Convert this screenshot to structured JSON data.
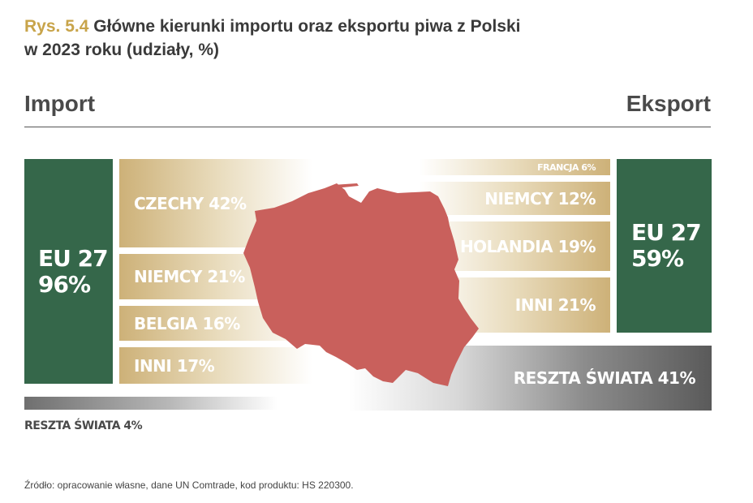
{
  "title": {
    "prefix": "Rys. 5.4",
    "line1": "Główne kierunki importu oraz eksportu piwa z Polski",
    "line2": "w 2023 roku (udziały, %)"
  },
  "headers": {
    "import": "Import",
    "export": "Eksport"
  },
  "import": {
    "eu": {
      "line1": "EU 27",
      "line2": "96%"
    },
    "labels": [
      "CZECHY 42%",
      "NIEMCY 21%",
      "BELGIA 16%",
      "INNI 17%"
    ],
    "rest_label": "RESZTA ŚWIATA 4%"
  },
  "export": {
    "eu": {
      "line1": "EU 27",
      "line2": "59%"
    },
    "labels": [
      "FRANCJA 6%",
      "NIEMCY 12%",
      "HOLANDIA 19%",
      "INNI 21%"
    ],
    "rest_label": "RESZTA ŚWIATA 41%"
  },
  "source": "Źródło: opracowanie własne, dane UN Comtrade, kod produktu: HS 220300.",
  "colors": {
    "eu_box": "#35674a",
    "band_gold": "#cdb178",
    "map": "#c9605c",
    "prefix": "#c8a44a",
    "rest_gray": "#5a5a5a"
  },
  "chart_data": {
    "type": "bar",
    "series": [
      {
        "name": "Import",
        "categories": [
          "CZECHY",
          "NIEMCY",
          "BELGIA",
          "INNI",
          "RESZTA ŚWIATA"
        ],
        "values": [
          42,
          21,
          16,
          17,
          4
        ],
        "group_eu27": 96
      },
      {
        "name": "Eksport",
        "categories": [
          "FRANCJA",
          "NIEMCY",
          "HOLANDIA",
          "INNI",
          "RESZTA ŚWIATA"
        ],
        "values": [
          6,
          12,
          19,
          21,
          41
        ],
        "group_eu27": 59
      }
    ],
    "unit": "%"
  }
}
